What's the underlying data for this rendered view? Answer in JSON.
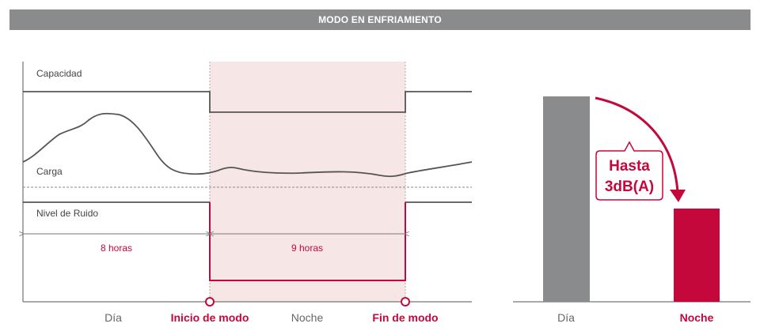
{
  "title": "MODO EN ENFRIAMIENTO",
  "left_chart": {
    "capacity_label": "Capacidad",
    "load_label": "Carga",
    "noise_label": "Nivel de Ruido",
    "day_duration": "8 horas",
    "night_duration": "9 horas",
    "x_labels": {
      "day": "Día",
      "mode_start": "Inicio de modo",
      "night": "Noche",
      "mode_end": "Fin de modo"
    }
  },
  "right_chart": {
    "callout_line1": "Hasta",
    "callout_line2": "3dB(A)",
    "day_label": "Día",
    "night_label": "Noche"
  },
  "colors": {
    "banner": "#8a8b8d",
    "accent": "#c4083b",
    "night_band": "#f7e6e6",
    "gray_bar": "#8a8b8d",
    "line": "#555555"
  }
}
